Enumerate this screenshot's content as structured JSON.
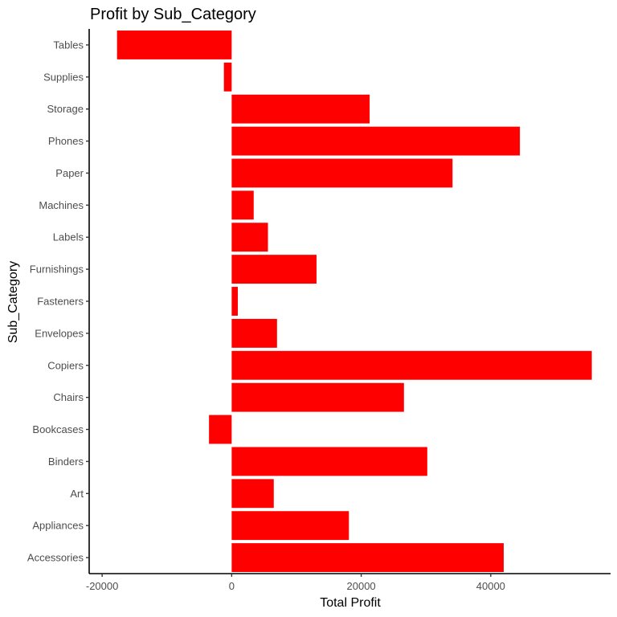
{
  "chart_data": {
    "type": "bar",
    "orientation": "horizontal",
    "title": "Profit by Sub_Category",
    "xlabel": "Total Profit",
    "ylabel": "Sub_Category",
    "xlim": [
      -22000,
      58500
    ],
    "x_ticks": [
      -20000,
      0,
      20000,
      40000
    ],
    "x_tick_labels": [
      "-20000",
      "0",
      "20000",
      "40000"
    ],
    "bar_color": "#ff0000",
    "grid": false,
    "legend": "none",
    "categories": [
      "Accessories",
      "Appliances",
      "Art",
      "Binders",
      "Bookcases",
      "Chairs",
      "Copiers",
      "Envelopes",
      "Fasteners",
      "Furnishings",
      "Labels",
      "Machines",
      "Paper",
      "Phones",
      "Storage",
      "Supplies",
      "Tables"
    ],
    "values": [
      42000,
      18100,
      6500,
      30200,
      -3500,
      26600,
      55600,
      7000,
      950,
      13100,
      5600,
      3400,
      34100,
      44500,
      21300,
      -1200,
      -17700
    ]
  }
}
